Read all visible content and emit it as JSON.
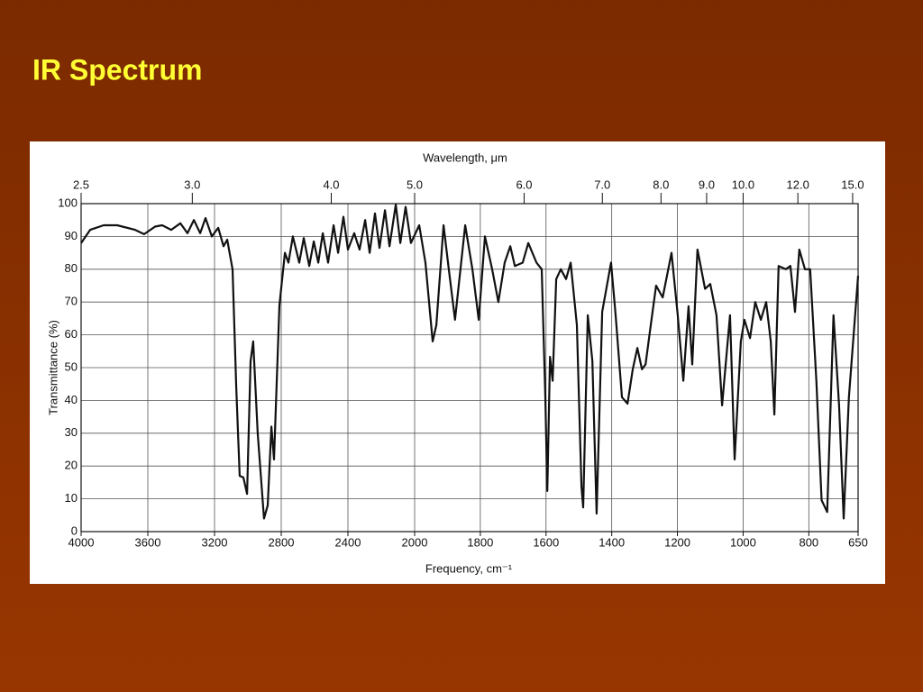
{
  "slide_title": "IR Spectrum",
  "chart_data": {
    "type": "line",
    "x_label": "Frequency, cm⁻¹",
    "y_label": "Transmittance (%)",
    "x2_label": "Wavelength, μm",
    "color": "#111111",
    "grid": true,
    "xlim": [
      4000,
      650
    ],
    "x_scale_break": 2000,
    "xticks": [
      4000,
      3600,
      3200,
      2800,
      2400,
      2000,
      1800,
      1600,
      1400,
      1200,
      1000,
      800,
      650
    ],
    "ylim": [
      0,
      100
    ],
    "yticks": [
      0,
      10,
      20,
      30,
      40,
      50,
      60,
      70,
      80,
      90,
      100
    ],
    "x2ticks": [
      2.5,
      {
        "value": 3,
        "label": "3.0"
      },
      {
        "value": 4,
        "label": "4.0"
      },
      {
        "value": 5,
        "label": "5.0"
      },
      {
        "value": 6,
        "label": "6.0"
      },
      {
        "value": 7,
        "label": "7.0"
      },
      {
        "value": 8,
        "label": "8.0"
      },
      {
        "value": 9,
        "label": "9.0"
      },
      {
        "value": 10,
        "label": "10.0"
      },
      {
        "value": 12,
        "label": "12.0"
      },
      {
        "value": 15,
        "label": "15.0"
      }
    ],
    "x": [
      4000,
      3946,
      3865,
      3784,
      3676,
      3622,
      3557,
      3514,
      3460,
      3405,
      3362,
      3324,
      3286,
      3254,
      3216,
      3178,
      3146,
      3124,
      3092,
      3070,
      3049,
      3027,
      3005,
      2984,
      2968,
      2941,
      2903,
      2881,
      2859,
      2843,
      2811,
      2778,
      2757,
      2730,
      2692,
      2665,
      2632,
      2605,
      2578,
      2551,
      2519,
      2486,
      2459,
      2427,
      2400,
      2362,
      2330,
      2297,
      2270,
      2238,
      2211,
      2178,
      2151,
      2113,
      2086,
      2054,
      2022,
      1986,
      1967,
      1945,
      1934,
      1912,
      1896,
      1877,
      1846,
      1824,
      1805,
      1786,
      1764,
      1745,
      1726,
      1709,
      1695,
      1671,
      1654,
      1629,
      1613,
      1602,
      1596,
      1588,
      1580,
      1569,
      1555,
      1539,
      1525,
      1506,
      1492,
      1487,
      1473,
      1459,
      1446,
      1429,
      1402,
      1388,
      1369,
      1352,
      1336,
      1322,
      1308,
      1297,
      1281,
      1265,
      1245,
      1218,
      1199,
      1182,
      1166,
      1155,
      1139,
      1116,
      1100,
      1081,
      1064,
      1040,
      1026,
      1007,
      996,
      979,
      963,
      946,
      930,
      916,
      905,
      892,
      870,
      856,
      842,
      829,
      812,
      796,
      777,
      761,
      744,
      725,
      708,
      694,
      678,
      650
    ],
    "values": [
      88,
      92,
      93.4,
      93.4,
      92,
      90.7,
      93,
      93.4,
      92,
      94,
      91,
      95,
      91,
      95.6,
      90,
      92.6,
      87,
      89,
      80,
      44,
      17,
      16.5,
      11.5,
      52,
      58,
      30,
      4,
      8,
      32,
      22,
      69,
      85,
      82,
      90,
      82,
      89.5,
      81,
      88.5,
      82,
      91,
      82,
      93.4,
      85,
      96,
      86,
      91,
      86,
      95,
      85,
      97,
      86.5,
      98,
      87,
      99.7,
      88,
      99,
      88,
      93.4,
      82,
      58,
      63,
      93.4,
      80,
      64.6,
      93.4,
      80,
      64.6,
      90,
      80,
      70,
      82,
      87,
      81,
      82,
      88,
      82,
      80,
      41,
      12.4,
      53.3,
      46,
      77,
      80,
      77,
      82,
      63,
      13.7,
      7.4,
      66,
      52,
      5.5,
      67,
      82,
      66,
      41,
      39,
      49.5,
      56,
      49.5,
      51,
      63,
      75,
      71.4,
      85,
      66,
      46,
      68.7,
      51,
      86,
      74,
      75.5,
      66,
      38.5,
      66,
      22,
      58,
      64.6,
      59,
      70,
      64.6,
      70,
      58,
      35.7,
      81,
      80,
      81,
      67,
      86,
      80,
      80,
      46,
      9.6,
      6,
      66,
      38.5,
      4,
      41,
      78
    ]
  }
}
